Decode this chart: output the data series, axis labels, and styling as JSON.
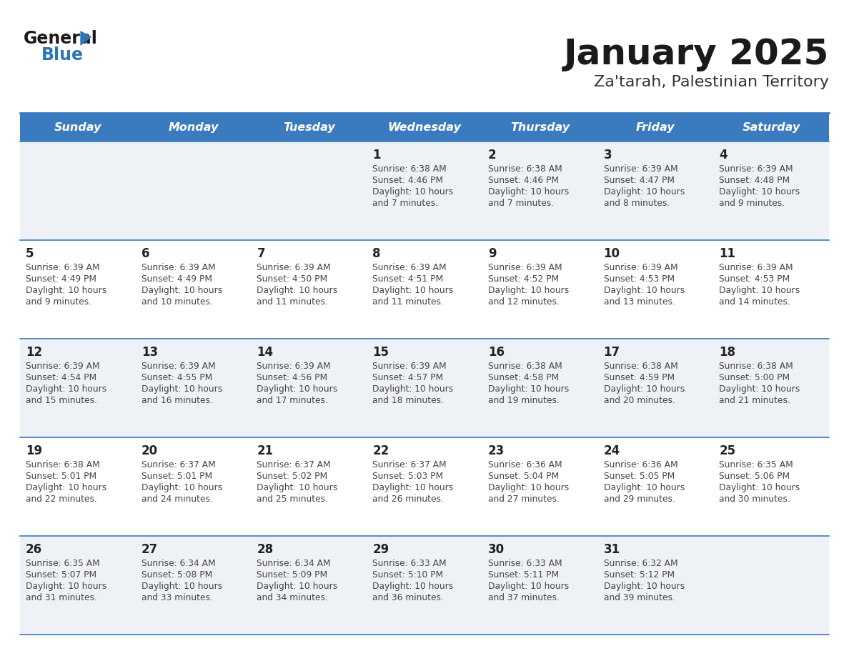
{
  "title": "January 2025",
  "subtitle": "Za'tarah, Palestinian Territory",
  "days_of_week": [
    "Sunday",
    "Monday",
    "Tuesday",
    "Wednesday",
    "Thursday",
    "Friday",
    "Saturday"
  ],
  "header_bg": "#3a7abf",
  "header_text": "#ffffff",
  "row_bg_odd": "#eef2f7",
  "row_bg_even": "#ffffff",
  "divider_color": "#3a7abf",
  "text_color": "#444444",
  "day_number_color": "#222222",
  "calendar_data": [
    [
      null,
      null,
      null,
      {
        "day": 1,
        "sunrise": "6:38 AM",
        "sunset": "4:46 PM",
        "daylight": "10 hours and 7 minutes"
      },
      {
        "day": 2,
        "sunrise": "6:38 AM",
        "sunset": "4:46 PM",
        "daylight": "10 hours and 7 minutes"
      },
      {
        "day": 3,
        "sunrise": "6:39 AM",
        "sunset": "4:47 PM",
        "daylight": "10 hours and 8 minutes"
      },
      {
        "day": 4,
        "sunrise": "6:39 AM",
        "sunset": "4:48 PM",
        "daylight": "10 hours and 9 minutes"
      }
    ],
    [
      {
        "day": 5,
        "sunrise": "6:39 AM",
        "sunset": "4:49 PM",
        "daylight": "10 hours and 9 minutes"
      },
      {
        "day": 6,
        "sunrise": "6:39 AM",
        "sunset": "4:49 PM",
        "daylight": "10 hours and 10 minutes"
      },
      {
        "day": 7,
        "sunrise": "6:39 AM",
        "sunset": "4:50 PM",
        "daylight": "10 hours and 11 minutes"
      },
      {
        "day": 8,
        "sunrise": "6:39 AM",
        "sunset": "4:51 PM",
        "daylight": "10 hours and 11 minutes"
      },
      {
        "day": 9,
        "sunrise": "6:39 AM",
        "sunset": "4:52 PM",
        "daylight": "10 hours and 12 minutes"
      },
      {
        "day": 10,
        "sunrise": "6:39 AM",
        "sunset": "4:53 PM",
        "daylight": "10 hours and 13 minutes"
      },
      {
        "day": 11,
        "sunrise": "6:39 AM",
        "sunset": "4:53 PM",
        "daylight": "10 hours and 14 minutes"
      }
    ],
    [
      {
        "day": 12,
        "sunrise": "6:39 AM",
        "sunset": "4:54 PM",
        "daylight": "10 hours and 15 minutes"
      },
      {
        "day": 13,
        "sunrise": "6:39 AM",
        "sunset": "4:55 PM",
        "daylight": "10 hours and 16 minutes"
      },
      {
        "day": 14,
        "sunrise": "6:39 AM",
        "sunset": "4:56 PM",
        "daylight": "10 hours and 17 minutes"
      },
      {
        "day": 15,
        "sunrise": "6:39 AM",
        "sunset": "4:57 PM",
        "daylight": "10 hours and 18 minutes"
      },
      {
        "day": 16,
        "sunrise": "6:38 AM",
        "sunset": "4:58 PM",
        "daylight": "10 hours and 19 minutes"
      },
      {
        "day": 17,
        "sunrise": "6:38 AM",
        "sunset": "4:59 PM",
        "daylight": "10 hours and 20 minutes"
      },
      {
        "day": 18,
        "sunrise": "6:38 AM",
        "sunset": "5:00 PM",
        "daylight": "10 hours and 21 minutes"
      }
    ],
    [
      {
        "day": 19,
        "sunrise": "6:38 AM",
        "sunset": "5:01 PM",
        "daylight": "10 hours and 22 minutes"
      },
      {
        "day": 20,
        "sunrise": "6:37 AM",
        "sunset": "5:01 PM",
        "daylight": "10 hours and 24 minutes"
      },
      {
        "day": 21,
        "sunrise": "6:37 AM",
        "sunset": "5:02 PM",
        "daylight": "10 hours and 25 minutes"
      },
      {
        "day": 22,
        "sunrise": "6:37 AM",
        "sunset": "5:03 PM",
        "daylight": "10 hours and 26 minutes"
      },
      {
        "day": 23,
        "sunrise": "6:36 AM",
        "sunset": "5:04 PM",
        "daylight": "10 hours and 27 minutes"
      },
      {
        "day": 24,
        "sunrise": "6:36 AM",
        "sunset": "5:05 PM",
        "daylight": "10 hours and 29 minutes"
      },
      {
        "day": 25,
        "sunrise": "6:35 AM",
        "sunset": "5:06 PM",
        "daylight": "10 hours and 30 minutes"
      }
    ],
    [
      {
        "day": 26,
        "sunrise": "6:35 AM",
        "sunset": "5:07 PM",
        "daylight": "10 hours and 31 minutes"
      },
      {
        "day": 27,
        "sunrise": "6:34 AM",
        "sunset": "5:08 PM",
        "daylight": "10 hours and 33 minutes"
      },
      {
        "day": 28,
        "sunrise": "6:34 AM",
        "sunset": "5:09 PM",
        "daylight": "10 hours and 34 minutes"
      },
      {
        "day": 29,
        "sunrise": "6:33 AM",
        "sunset": "5:10 PM",
        "daylight": "10 hours and 36 minutes"
      },
      {
        "day": 30,
        "sunrise": "6:33 AM",
        "sunset": "5:11 PM",
        "daylight": "10 hours and 37 minutes"
      },
      {
        "day": 31,
        "sunrise": "6:32 AM",
        "sunset": "5:12 PM",
        "daylight": "10 hours and 39 minutes"
      },
      null
    ]
  ],
  "logo_text_general": "General",
  "logo_text_blue": "Blue",
  "logo_triangle_color": "#2e75b6"
}
